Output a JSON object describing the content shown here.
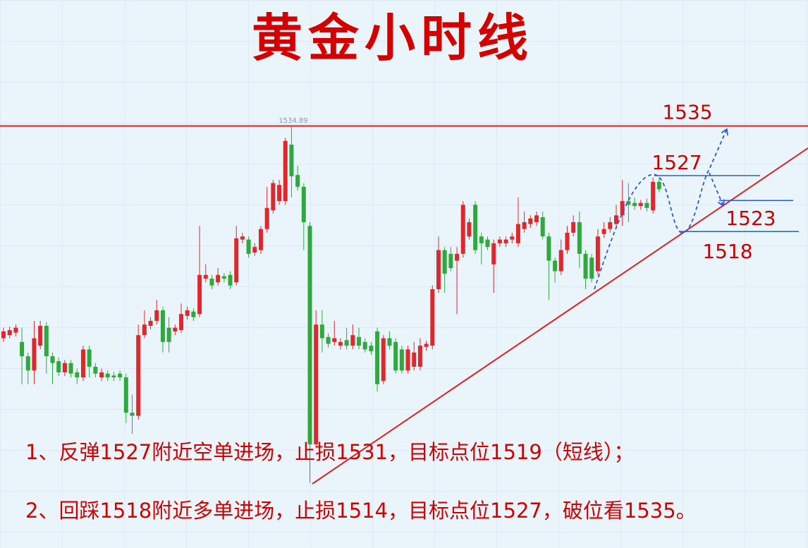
{
  "chart_data": {
    "type": "candlestick",
    "title": "黄金小时线",
    "ylim": [
      1467,
      1555.3
    ],
    "up_color": "#e0282c",
    "down_color": "#2eaa3c",
    "peak_label": 1534.89,
    "candles": [
      [
        1500.8,
        1502.5,
        1500.2,
        1501.9
      ],
      [
        1501.3,
        1502.7,
        1500.8,
        1502.1
      ],
      [
        1501.7,
        1503.0,
        1501.1,
        1502.5
      ],
      [
        1500.2,
        1502.5,
        1493.4,
        1497.9
      ],
      [
        1497.9,
        1498.5,
        1493.4,
        1495.6
      ],
      [
        1495.6,
        1503.6,
        1493.4,
        1500.8
      ],
      [
        1499.6,
        1503.6,
        1499.0,
        1502.8
      ],
      [
        1502.8,
        1503.4,
        1495.1,
        1497.9
      ],
      [
        1497.9,
        1498.5,
        1493.4,
        1496.8
      ],
      [
        1497.1,
        1497.7,
        1494.7,
        1495.3
      ],
      [
        1495.3,
        1497.3,
        1494.7,
        1496.8
      ],
      [
        1496.8,
        1497.3,
        1494.5,
        1495.1
      ],
      [
        1495.3,
        1495.9,
        1493.4,
        1494.5
      ],
      [
        1494.5,
        1499.6,
        1493.9,
        1499.0
      ],
      [
        1499.0,
        1499.6,
        1494.5,
        1496.2
      ],
      [
        1496.2,
        1496.8,
        1494.5,
        1495.1
      ],
      [
        1494.5,
        1495.9,
        1493.9,
        1495.3
      ],
      [
        1495.1,
        1495.6,
        1493.9,
        1494.5
      ],
      [
        1494.8,
        1495.4,
        1493.9,
        1494.5
      ],
      [
        1495.1,
        1495.6,
        1493.9,
        1494.5
      ],
      [
        1494.5,
        1495.1,
        1487.1,
        1488.8
      ],
      [
        1488.8,
        1491.7,
        1485.4,
        1488.3
      ],
      [
        1488.3,
        1503.0,
        1487.7,
        1501.3
      ],
      [
        1501.3,
        1505.3,
        1500.8,
        1503.0
      ],
      [
        1502.8,
        1504.2,
        1502.2,
        1503.6
      ],
      [
        1503.6,
        1507.0,
        1503.0,
        1505.3
      ],
      [
        1505.3,
        1505.9,
        1498.5,
        1500.2
      ],
      [
        1502.5,
        1504.2,
        1498.5,
        1500.2
      ],
      [
        1501.9,
        1503.0,
        1501.3,
        1502.5
      ],
      [
        1502.1,
        1506.4,
        1501.6,
        1504.7
      ],
      [
        1504.4,
        1505.9,
        1503.8,
        1505.3
      ],
      [
        1505.1,
        1505.6,
        1503.6,
        1504.2
      ],
      [
        1504.7,
        1518.9,
        1504.2,
        1511.0
      ],
      [
        1510.4,
        1512.7,
        1509.8,
        1511.0
      ],
      [
        1510.4,
        1511.0,
        1508.7,
        1509.3
      ],
      [
        1509.8,
        1512.1,
        1509.3,
        1511.0
      ],
      [
        1510.8,
        1511.3,
        1509.8,
        1510.4
      ],
      [
        1511.0,
        1511.6,
        1508.7,
        1509.3
      ],
      [
        1509.8,
        1518.9,
        1509.3,
        1516.9
      ],
      [
        1516.7,
        1517.8,
        1516.1,
        1517.2
      ],
      [
        1516.7,
        1517.2,
        1513.8,
        1514.4
      ],
      [
        1514.6,
        1516.1,
        1514.1,
        1515.5
      ],
      [
        1515.0,
        1518.9,
        1514.4,
        1518.4
      ],
      [
        1518.4,
        1525.2,
        1517.8,
        1521.8
      ],
      [
        1521.4,
        1526.3,
        1520.9,
        1525.8
      ],
      [
        1522.9,
        1526.3,
        1522.3,
        1525.5
      ],
      [
        1522.9,
        1533.1,
        1522.3,
        1532.6
      ],
      [
        1532.0,
        1534.89,
        1523.5,
        1526.9
      ],
      [
        1527.1,
        1528.6,
        1524.6,
        1525.2
      ],
      [
        1525.2,
        1525.8,
        1515.0,
        1519.5
      ],
      [
        1518.9,
        1519.5,
        1477.5,
        1483.7
      ],
      [
        1483.7,
        1505.3,
        1483.1,
        1503.0
      ],
      [
        1503.0,
        1505.3,
        1498.5,
        1500.8
      ],
      [
        1501.0,
        1501.6,
        1499.3,
        1499.9
      ],
      [
        1500.2,
        1503.6,
        1499.6,
        1500.8
      ],
      [
        1499.6,
        1500.8,
        1499.0,
        1500.2
      ],
      [
        1500.5,
        1502.5,
        1499.0,
        1499.6
      ],
      [
        1499.6,
        1503.0,
        1499.0,
        1501.3
      ],
      [
        1501.0,
        1502.5,
        1499.0,
        1499.6
      ],
      [
        1500.2,
        1500.8,
        1498.5,
        1499.0
      ],
      [
        1499.6,
        1500.2,
        1498.1,
        1498.7
      ],
      [
        1501.9,
        1502.5,
        1492.2,
        1493.4
      ],
      [
        1493.9,
        1501.3,
        1493.4,
        1500.8
      ],
      [
        1500.8,
        1501.9,
        1499.0,
        1499.6
      ],
      [
        1500.2,
        1500.8,
        1495.1,
        1495.6
      ],
      [
        1499.0,
        1499.6,
        1495.1,
        1495.6
      ],
      [
        1495.6,
        1499.6,
        1495.1,
        1499.0
      ],
      [
        1496.2,
        1500.2,
        1495.6,
        1498.5
      ],
      [
        1496.2,
        1500.8,
        1495.6,
        1499.6
      ],
      [
        1499.4,
        1500.4,
        1498.8,
        1499.9
      ],
      [
        1499.6,
        1509.3,
        1499.0,
        1508.7
      ],
      [
        1508.7,
        1517.2,
        1508.1,
        1515.0
      ],
      [
        1515.0,
        1515.5,
        1508.1,
        1511.2
      ],
      [
        1514.4,
        1515.5,
        1511.6,
        1512.1
      ],
      [
        1513.3,
        1515.5,
        1504.7,
        1514.4
      ],
      [
        1514.4,
        1522.9,
        1513.8,
        1522.3
      ],
      [
        1517.2,
        1520.1,
        1516.7,
        1519.5
      ],
      [
        1522.3,
        1522.9,
        1514.4,
        1515.0
      ],
      [
        1517.2,
        1517.8,
        1512.7,
        1516.1
      ],
      [
        1516.7,
        1517.2,
        1515.0,
        1515.5
      ],
      [
        1512.7,
        1516.7,
        1508.1,
        1516.1
      ],
      [
        1516.1,
        1517.2,
        1515.5,
        1516.7
      ],
      [
        1516.1,
        1517.2,
        1515.5,
        1516.7
      ],
      [
        1516.7,
        1517.8,
        1516.1,
        1517.2
      ],
      [
        1516.1,
        1523.5,
        1515.5,
        1519.2
      ],
      [
        1518.4,
        1521.2,
        1517.8,
        1519.5
      ],
      [
        1519.2,
        1520.6,
        1518.6,
        1520.1
      ],
      [
        1519.5,
        1521.2,
        1518.9,
        1520.6
      ],
      [
        1520.3,
        1521.2,
        1516.7,
        1517.2
      ],
      [
        1517.2,
        1517.8,
        1507.0,
        1513.3
      ],
      [
        1513.3,
        1513.8,
        1509.8,
        1511.6
      ],
      [
        1511.6,
        1516.7,
        1511.0,
        1515.0
      ],
      [
        1515.0,
        1518.9,
        1514.4,
        1517.8
      ],
      [
        1517.8,
        1520.6,
        1517.2,
        1519.5
      ],
      [
        1519.5,
        1521.2,
        1512.1,
        1514.4
      ],
      [
        1514.4,
        1515.0,
        1508.7,
        1510.4
      ],
      [
        1513.8,
        1514.4,
        1509.8,
        1510.4
      ],
      [
        1511.6,
        1518.4,
        1511.0,
        1517.2
      ],
      [
        1517.6,
        1519.5,
        1517.0,
        1518.4
      ],
      [
        1518.4,
        1520.3,
        1517.8,
        1519.5
      ],
      [
        1519.2,
        1522.3,
        1518.6,
        1520.6
      ],
      [
        1520.6,
        1526.3,
        1518.9,
        1522.9
      ],
      [
        1522.9,
        1525.8,
        1519.5,
        1522.3
      ],
      [
        1522.6,
        1523.5,
        1521.5,
        1522.1
      ],
      [
        1522.1,
        1523.1,
        1521.5,
        1522.6
      ],
      [
        1522.6,
        1523.3,
        1521.2,
        1521.8
      ],
      [
        1521.4,
        1526.7,
        1520.9,
        1526.0
      ],
      [
        1526.0,
        1526.7,
        1524.3,
        1524.8
      ]
    ],
    "levels": [
      {
        "value": 1535,
        "color": "#e02020"
      },
      {
        "value": 1527,
        "color": "#2a5ad8"
      },
      {
        "value": 1523,
        "color": "#2a5ad8"
      },
      {
        "value": 1518,
        "color": "#2a5ad8"
      }
    ]
  },
  "notes": [
    "1、反弹1527附近空单进场，止损1531，目标点位1519（短线）；",
    "2、回踩1518附近多单进场，止损1514，目标点位1527，破位看1535。"
  ]
}
